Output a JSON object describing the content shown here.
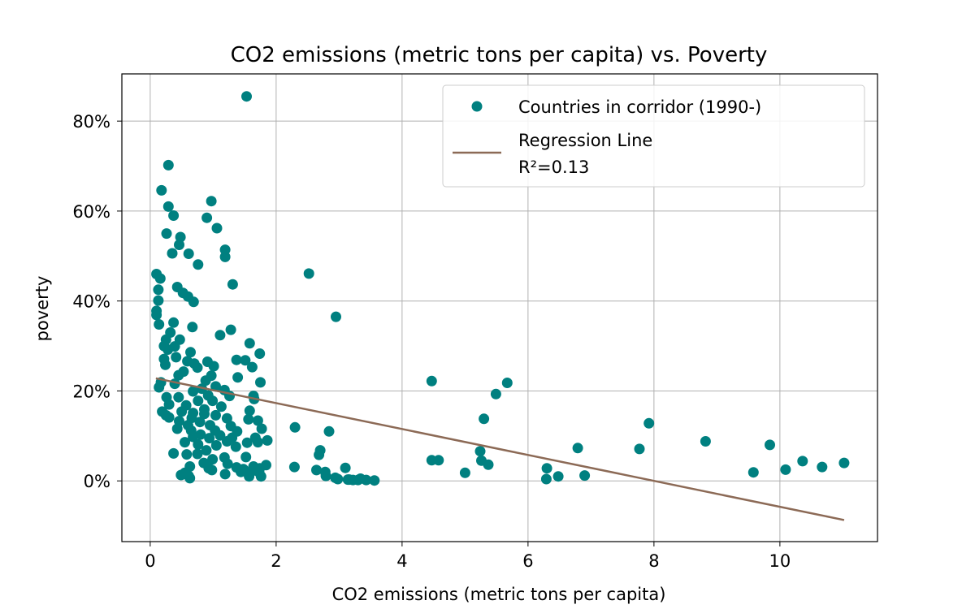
{
  "chart_data": {
    "type": "scatter",
    "title": "CO2 emissions (metric tons per capita) vs. Poverty",
    "xlabel": "CO2 emissions (metric tons per capita)",
    "ylabel": "poverty",
    "xlim": [
      -0.45,
      11.55
    ],
    "ylim": [
      -13.5,
      90.5
    ],
    "xticks": [
      0,
      2,
      4,
      6,
      8,
      10
    ],
    "xtick_labels": [
      "0",
      "2",
      "4",
      "6",
      "8",
      "10"
    ],
    "yticks": [
      0,
      20,
      40,
      60,
      80
    ],
    "ytick_labels": [
      "0%",
      "20%",
      "40%",
      "60%",
      "80%"
    ],
    "grid": true,
    "legend_position": "top-right",
    "colors": {
      "points": "#008080",
      "regression": "#8c6a56"
    },
    "series": [
      {
        "name": "Countries in corridor (1990-)",
        "kind": "scatter",
        "points": [
          [
            1.53,
            85.5
          ],
          [
            0.29,
            70.2
          ],
          [
            0.18,
            64.6
          ],
          [
            0.97,
            62.2
          ],
          [
            0.29,
            61.0
          ],
          [
            0.37,
            59.0
          ],
          [
            0.9,
            58.5
          ],
          [
            1.06,
            56.2
          ],
          [
            0.26,
            55.0
          ],
          [
            0.48,
            54.2
          ],
          [
            0.46,
            52.5
          ],
          [
            1.19,
            51.4
          ],
          [
            0.35,
            50.6
          ],
          [
            0.61,
            50.5
          ],
          [
            1.19,
            49.8
          ],
          [
            0.76,
            48.1
          ],
          [
            2.52,
            46.1
          ],
          [
            0.1,
            46.0
          ],
          [
            0.16,
            45.0
          ],
          [
            1.31,
            43.7
          ],
          [
            0.43,
            43.1
          ],
          [
            0.13,
            42.5
          ],
          [
            0.52,
            41.8
          ],
          [
            0.6,
            41.0
          ],
          [
            0.13,
            40.1
          ],
          [
            0.69,
            39.8
          ],
          [
            0.1,
            37.8
          ],
          [
            2.95,
            36.5
          ],
          [
            0.1,
            36.9
          ],
          [
            0.14,
            34.8
          ],
          [
            0.37,
            35.2
          ],
          [
            0.67,
            34.2
          ],
          [
            1.28,
            33.6
          ],
          [
            1.11,
            32.4
          ],
          [
            0.32,
            33.0
          ],
          [
            0.25,
            31.4
          ],
          [
            0.47,
            31.4
          ],
          [
            1.58,
            30.6
          ],
          [
            0.22,
            30.0
          ],
          [
            0.39,
            29.9
          ],
          [
            0.28,
            29.2
          ],
          [
            0.64,
            28.6
          ],
          [
            1.74,
            28.3
          ],
          [
            0.41,
            27.5
          ],
          [
            0.22,
            27.1
          ],
          [
            1.37,
            26.9
          ],
          [
            1.51,
            26.8
          ],
          [
            0.59,
            26.6
          ],
          [
            0.91,
            26.5
          ],
          [
            0.7,
            26.1
          ],
          [
            0.24,
            25.8
          ],
          [
            0.75,
            25.2
          ],
          [
            1.01,
            25.5
          ],
          [
            1.62,
            25.3
          ],
          [
            0.53,
            24.3
          ],
          [
            0.45,
            23.5
          ],
          [
            0.97,
            23.4
          ],
          [
            1.39,
            23.0
          ],
          [
            0.88,
            22.3
          ],
          [
            4.47,
            22.2
          ],
          [
            5.67,
            21.8
          ],
          [
            1.75,
            21.9
          ],
          [
            0.17,
            21.9
          ],
          [
            0.39,
            21.6
          ],
          [
            1.04,
            21.0
          ],
          [
            0.82,
            20.5
          ],
          [
            1.18,
            20.2
          ],
          [
            0.14,
            20.8
          ],
          [
            0.68,
            19.9
          ],
          [
            5.49,
            19.3
          ],
          [
            0.92,
            19.0
          ],
          [
            1.64,
            18.9
          ],
          [
            0.26,
            18.6
          ],
          [
            0.45,
            18.6
          ],
          [
            1.26,
            18.9
          ],
          [
            1.65,
            18.2
          ],
          [
            0.76,
            17.8
          ],
          [
            0.99,
            17.8
          ],
          [
            0.3,
            17.0
          ],
          [
            0.57,
            16.8
          ],
          [
            1.13,
            16.5
          ],
          [
            0.86,
            15.9
          ],
          [
            1.58,
            15.6
          ],
          [
            0.19,
            15.4
          ],
          [
            0.5,
            15.4
          ],
          [
            0.68,
            15.1
          ],
          [
            0.25,
            14.6
          ],
          [
            0.86,
            14.9
          ],
          [
            1.04,
            14.6
          ],
          [
            0.3,
            14.1
          ],
          [
            0.66,
            14.0
          ],
          [
            5.3,
            13.8
          ],
          [
            1.22,
            13.9
          ],
          [
            1.56,
            13.7
          ],
          [
            1.71,
            13.4
          ],
          [
            0.46,
            13.3
          ],
          [
            0.79,
            13.1
          ],
          [
            7.92,
            12.8
          ],
          [
            0.6,
            12.4
          ],
          [
            0.95,
            12.4
          ],
          [
            1.28,
            12.2
          ],
          [
            0.43,
            11.6
          ],
          [
            1.77,
            11.6
          ],
          [
            0.65,
            11.2
          ],
          [
            1.03,
            11.2
          ],
          [
            1.38,
            11.0
          ],
          [
            2.84,
            11.0
          ],
          [
            2.3,
            11.9
          ],
          [
            0.8,
            10.3
          ],
          [
            1.11,
            10.1
          ],
          [
            1.67,
            9.6
          ],
          [
            0.68,
            9.8
          ],
          [
            1.3,
            9.6
          ],
          [
            0.94,
            9.5
          ],
          [
            1.86,
            9.0
          ],
          [
            8.82,
            8.8
          ],
          [
            0.55,
            8.6
          ],
          [
            1.22,
            8.8
          ],
          [
            1.54,
            8.5
          ],
          [
            1.71,
            8.6
          ],
          [
            0.76,
            8.1
          ],
          [
            9.84,
            8.0
          ],
          [
            1.05,
            7.9
          ],
          [
            1.36,
            7.6
          ],
          [
            6.79,
            7.3
          ],
          [
            7.77,
            7.1
          ],
          [
            0.89,
            6.8
          ],
          [
            2.7,
            6.8
          ],
          [
            5.24,
            6.6
          ],
          [
            0.37,
            6.1
          ],
          [
            0.58,
            5.9
          ],
          [
            0.75,
            6.0
          ],
          [
            2.68,
            5.8
          ],
          [
            1.52,
            5.3
          ],
          [
            1.18,
            5.2
          ],
          [
            0.99,
            4.8
          ],
          [
            4.47,
            4.6
          ],
          [
            4.58,
            4.6
          ],
          [
            5.26,
            4.5
          ],
          [
            10.36,
            4.4
          ],
          [
            11.02,
            4.0
          ],
          [
            0.85,
            4.0
          ],
          [
            1.23,
            3.8
          ],
          [
            5.37,
            3.6
          ],
          [
            1.84,
            3.5
          ],
          [
            0.63,
            3.2
          ],
          [
            1.64,
            3.2
          ],
          [
            2.29,
            3.1
          ],
          [
            10.67,
            3.1
          ],
          [
            1.37,
            3.0
          ],
          [
            3.1,
            2.9
          ],
          [
            6.3,
            2.8
          ],
          [
            0.93,
            2.8
          ],
          [
            1.74,
            2.8
          ],
          [
            1.48,
            2.6
          ],
          [
            10.09,
            2.5
          ],
          [
            2.64,
            2.4
          ],
          [
            0.98,
            2.4
          ],
          [
            1.62,
            2.2
          ],
          [
            2.78,
            2.0
          ],
          [
            1.44,
            2.0
          ],
          [
            1.73,
            1.9
          ],
          [
            9.58,
            1.9
          ],
          [
            0.55,
            1.8
          ],
          [
            5.0,
            1.8
          ],
          [
            1.19,
            1.5
          ],
          [
            0.49,
            1.3
          ],
          [
            6.9,
            1.2
          ],
          [
            0.61,
            1.1
          ],
          [
            1.57,
            1.0
          ],
          [
            2.79,
            1.1
          ],
          [
            6.48,
            1.0
          ],
          [
            1.76,
            1.0
          ],
          [
            2.94,
            0.7
          ],
          [
            0.63,
            0.6
          ],
          [
            2.98,
            0.4
          ],
          [
            6.29,
            0.4
          ],
          [
            3.16,
            0.3
          ],
          [
            3.22,
            0.2
          ],
          [
            3.3,
            0.2
          ],
          [
            3.43,
            0.2
          ],
          [
            3.56,
            0.1
          ],
          [
            3.14,
            0.3
          ],
          [
            3.34,
            0.5
          ]
        ]
      },
      {
        "name": "Regression Line\nR²=0.13",
        "legend_lines": [
          "Regression Line",
          "R²=0.13"
        ],
        "kind": "line",
        "points": [
          [
            0.09,
            22.8
          ],
          [
            11.02,
            -8.7
          ]
        ]
      }
    ]
  }
}
